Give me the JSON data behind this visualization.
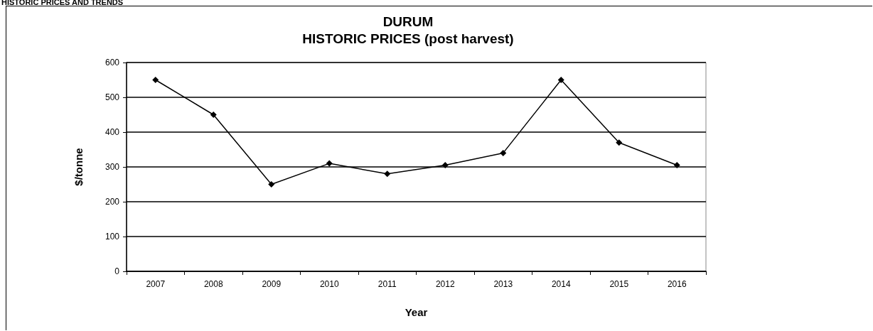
{
  "chart_data": {
    "type": "line",
    "title": "DURUM\nHISTORIC PRICES (post harvest)",
    "xlabel": "Year",
    "ylabel": "$/tonne",
    "annotations": [
      "HISTORIC PRICES AND TRENDS"
    ],
    "categories": [
      "2007",
      "2008",
      "2009",
      "2010",
      "2011",
      "2012",
      "2013",
      "2014",
      "2015",
      "2016"
    ],
    "series": [
      {
        "color": "#000000",
        "values": [
          550,
          450,
          250,
          310,
          280,
          305,
          340,
          550,
          370,
          305
        ]
      }
    ],
    "ylim": [
      0,
      600
    ],
    "yticks": [
      0,
      100,
      200,
      300,
      400,
      500,
      600
    ],
    "grid": "y",
    "marker": "diamond",
    "line_style": "solid"
  }
}
